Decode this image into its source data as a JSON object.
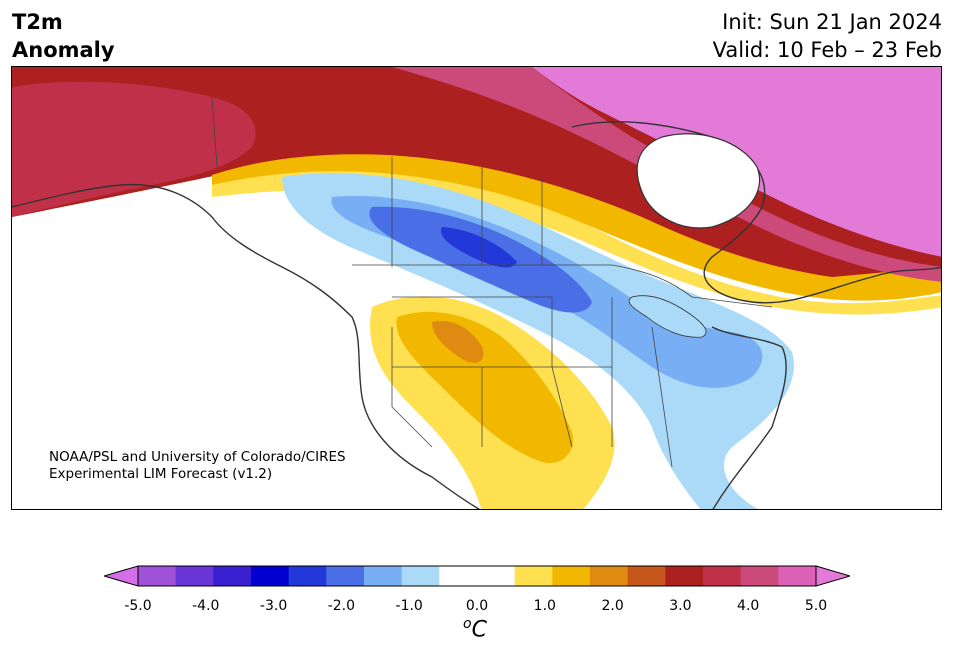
{
  "title": {
    "variable": "T2m",
    "subtitle": "Anomaly",
    "init": "Init: Sun 21 Jan 2024",
    "valid": "Valid: 10 Feb – 23 Feb"
  },
  "credit": {
    "line1": "NOAA/PSL and University of Colorado/CIRES",
    "line2": "Experimental LIM Forecast (v1.2)"
  },
  "colorbar": {
    "unit_base": "C",
    "unit_sup": "o",
    "ticks": [
      "-5.0",
      "-4.0",
      "-3.0",
      "-2.0",
      "-1.0",
      "0.0",
      "1.0",
      "2.0",
      "3.0",
      "4.0",
      "5.0"
    ],
    "colors": [
      "#d46ee6",
      "#9f52d8",
      "#6a36d8",
      "#3a1fd0",
      "#0000d0",
      "#2238d8",
      "#4a6ee6",
      "#78aef4",
      "#aadaf8",
      "#ffffff",
      "#ffffff",
      "#ffe050",
      "#f2b800",
      "#df8a10",
      "#c6561a",
      "#ad2020",
      "#c03048",
      "#cc4a7a",
      "#dc60b8",
      "#e47ad8"
    ]
  },
  "regions": {
    "warm_north": "red-magenta anomaly over Alaska and northern Canada",
    "cold_plains": "blue anomaly over northern plains to eastern US",
    "warm_southwest": "gold anomaly over southwest US and Mexico"
  }
}
